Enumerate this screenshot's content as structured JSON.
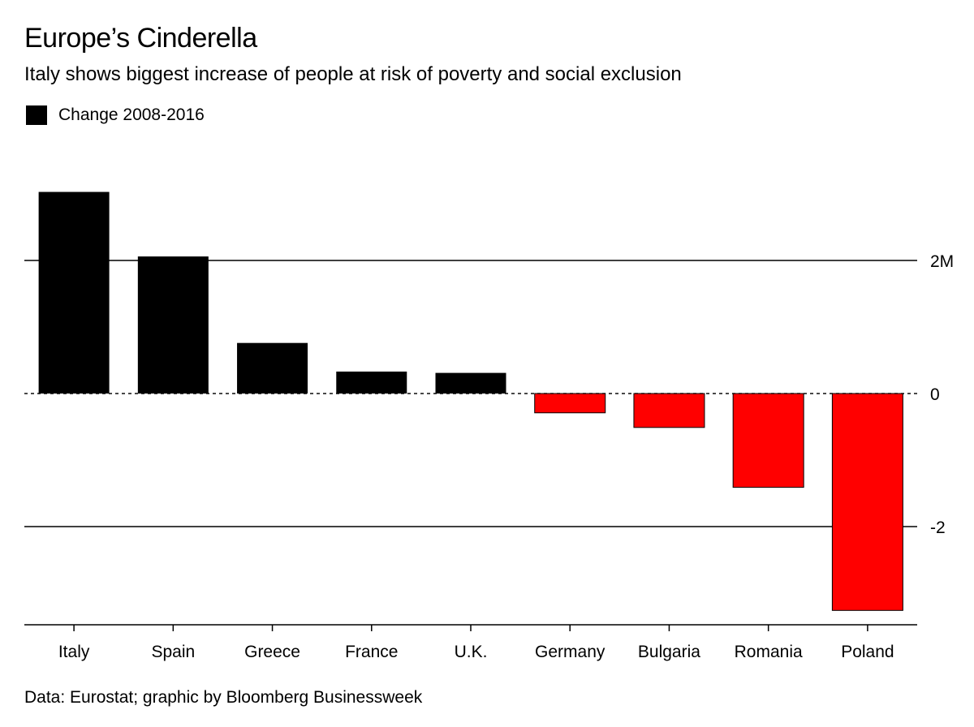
{
  "chart_data": {
    "type": "bar",
    "title": "Europe’s Cinderella",
    "subtitle": "Italy shows biggest increase of people at risk of poverty and social exclusion",
    "legend": [
      "Change 2008-2016"
    ],
    "categories": [
      "Italy",
      "Spain",
      "Greece",
      "France",
      "U.K.",
      "Germany",
      "Bulgaria",
      "Romania",
      "Poland"
    ],
    "values": [
      3.03,
      2.06,
      0.76,
      0.33,
      0.31,
      -0.29,
      -0.51,
      -1.41,
      -3.26
    ],
    "ylim": [
      -3.5,
      3.5
    ],
    "yticks": [
      {
        "value": 2,
        "label": "2M"
      },
      {
        "value": 0,
        "label": "0"
      },
      {
        "value": -2,
        "label": "-2"
      }
    ],
    "xlabel": "",
    "ylabel": "",
    "source": "Data: Eurostat; graphic by Bloomberg Businessweek",
    "colors": {
      "positive": "#000000",
      "negative": "#ff0000",
      "grid": "#000000"
    }
  }
}
